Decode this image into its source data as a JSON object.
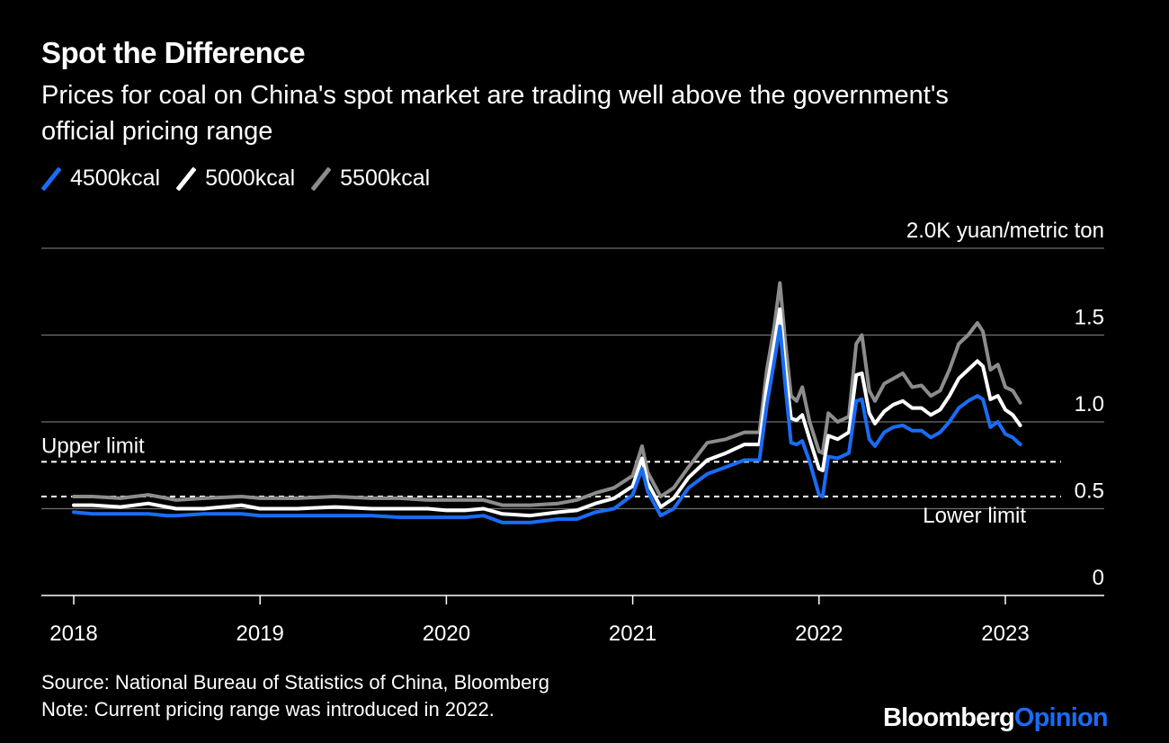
{
  "header": {
    "title": "Spot the Difference",
    "subtitle": "Prices for coal on China's spot market are trading well above the government's official pricing range"
  },
  "legend": [
    {
      "label": "4500kcal",
      "color": "#1a6cf5"
    },
    {
      "label": "5000kcal",
      "color": "#ffffff"
    },
    {
      "label": "5500kcal",
      "color": "#8c8c8c"
    }
  ],
  "footer": {
    "source": "Source: National Bureau of Statistics of China, Bloomberg",
    "note": "Note: Current pricing range was introduced in 2022."
  },
  "brand": {
    "part1": "Bloomberg",
    "part2": "Opinion"
  },
  "chart_data": {
    "type": "line",
    "ylabel": "2.0K yuan/metric ton",
    "ylim": [
      0,
      2.0
    ],
    "y_ticks": [
      {
        "value": 2.0,
        "label": "2.0K yuan/metric ton"
      },
      {
        "value": 1.5,
        "label": "1.5"
      },
      {
        "value": 1.0,
        "label": "1.0"
      },
      {
        "value": 0.5,
        "label": "0.5"
      },
      {
        "value": 0,
        "label": "0"
      }
    ],
    "xlim": [
      2018.0,
      2023.4
    ],
    "x_ticks": [
      {
        "value": 2018,
        "label": "2018"
      },
      {
        "value": 2019,
        "label": "2019"
      },
      {
        "value": 2020,
        "label": "2020"
      },
      {
        "value": 2021,
        "label": "2021"
      },
      {
        "value": 2022,
        "label": "2022"
      },
      {
        "value": 2023,
        "label": "2023"
      }
    ],
    "grid": true,
    "reference_lines": [
      {
        "label": "Upper limit",
        "value": 0.77
      },
      {
        "label": "Lower limit",
        "value": 0.57
      }
    ],
    "series": [
      {
        "name": "4500kcal",
        "color": "#1a6cf5",
        "points": [
          [
            2018.0,
            0.48
          ],
          [
            2018.1,
            0.47
          ],
          [
            2018.25,
            0.47
          ],
          [
            2018.4,
            0.47
          ],
          [
            2018.5,
            0.46
          ],
          [
            2018.55,
            0.46
          ],
          [
            2018.7,
            0.47
          ],
          [
            2018.9,
            0.47
          ],
          [
            2019.0,
            0.46
          ],
          [
            2019.2,
            0.46
          ],
          [
            2019.4,
            0.46
          ],
          [
            2019.6,
            0.46
          ],
          [
            2019.75,
            0.45
          ],
          [
            2019.9,
            0.45
          ],
          [
            2020.0,
            0.45
          ],
          [
            2020.1,
            0.45
          ],
          [
            2020.2,
            0.46
          ],
          [
            2020.3,
            0.42
          ],
          [
            2020.45,
            0.42
          ],
          [
            2020.6,
            0.44
          ],
          [
            2020.7,
            0.44
          ],
          [
            2020.8,
            0.48
          ],
          [
            2020.9,
            0.5
          ],
          [
            2021.0,
            0.58
          ],
          [
            2021.05,
            0.73
          ],
          [
            2021.08,
            0.6
          ],
          [
            2021.15,
            0.46
          ],
          [
            2021.22,
            0.5
          ],
          [
            2021.3,
            0.62
          ],
          [
            2021.4,
            0.7
          ],
          [
            2021.5,
            0.74
          ],
          [
            2021.6,
            0.78
          ],
          [
            2021.68,
            0.78
          ],
          [
            2021.72,
            1.1
          ],
          [
            2021.76,
            1.35
          ],
          [
            2021.79,
            1.55
          ],
          [
            2021.82,
            1.2
          ],
          [
            2021.85,
            0.88
          ],
          [
            2021.88,
            0.87
          ],
          [
            2021.91,
            0.89
          ],
          [
            2021.95,
            0.77
          ],
          [
            2022.0,
            0.58
          ],
          [
            2022.02,
            0.57
          ],
          [
            2022.05,
            0.8
          ],
          [
            2022.1,
            0.79
          ],
          [
            2022.16,
            0.82
          ],
          [
            2022.2,
            1.12
          ],
          [
            2022.23,
            1.13
          ],
          [
            2022.27,
            0.9
          ],
          [
            2022.3,
            0.86
          ],
          [
            2022.35,
            0.94
          ],
          [
            2022.4,
            0.97
          ],
          [
            2022.45,
            0.98
          ],
          [
            2022.5,
            0.95
          ],
          [
            2022.55,
            0.95
          ],
          [
            2022.6,
            0.91
          ],
          [
            2022.65,
            0.94
          ],
          [
            2022.7,
            1.0
          ],
          [
            2022.75,
            1.08
          ],
          [
            2022.8,
            1.12
          ],
          [
            2022.85,
            1.15
          ],
          [
            2022.88,
            1.13
          ],
          [
            2022.92,
            0.97
          ],
          [
            2022.96,
            1.0
          ],
          [
            2023.0,
            0.93
          ],
          [
            2023.04,
            0.91
          ],
          [
            2023.08,
            0.87
          ]
        ]
      },
      {
        "name": "5000kcal",
        "color": "#ffffff",
        "points": [
          [
            2018.0,
            0.52
          ],
          [
            2018.1,
            0.52
          ],
          [
            2018.25,
            0.51
          ],
          [
            2018.4,
            0.53
          ],
          [
            2018.5,
            0.51
          ],
          [
            2018.55,
            0.5
          ],
          [
            2018.7,
            0.5
          ],
          [
            2018.9,
            0.52
          ],
          [
            2019.0,
            0.5
          ],
          [
            2019.2,
            0.5
          ],
          [
            2019.4,
            0.51
          ],
          [
            2019.6,
            0.5
          ],
          [
            2019.75,
            0.5
          ],
          [
            2019.9,
            0.5
          ],
          [
            2020.0,
            0.49
          ],
          [
            2020.1,
            0.49
          ],
          [
            2020.2,
            0.5
          ],
          [
            2020.3,
            0.47
          ],
          [
            2020.45,
            0.46
          ],
          [
            2020.6,
            0.48
          ],
          [
            2020.7,
            0.49
          ],
          [
            2020.8,
            0.53
          ],
          [
            2020.9,
            0.56
          ],
          [
            2021.0,
            0.63
          ],
          [
            2021.05,
            0.79
          ],
          [
            2021.08,
            0.65
          ],
          [
            2021.15,
            0.51
          ],
          [
            2021.22,
            0.56
          ],
          [
            2021.3,
            0.68
          ],
          [
            2021.4,
            0.78
          ],
          [
            2021.5,
            0.82
          ],
          [
            2021.6,
            0.87
          ],
          [
            2021.68,
            0.87
          ],
          [
            2021.72,
            1.2
          ],
          [
            2021.76,
            1.45
          ],
          [
            2021.79,
            1.65
          ],
          [
            2021.82,
            1.3
          ],
          [
            2021.85,
            1.02
          ],
          [
            2021.88,
            1.01
          ],
          [
            2021.91,
            1.04
          ],
          [
            2021.95,
            0.9
          ],
          [
            2022.0,
            0.73
          ],
          [
            2022.02,
            0.72
          ],
          [
            2022.05,
            0.92
          ],
          [
            2022.1,
            0.9
          ],
          [
            2022.16,
            0.94
          ],
          [
            2022.2,
            1.27
          ],
          [
            2022.23,
            1.28
          ],
          [
            2022.27,
            1.05
          ],
          [
            2022.3,
            0.99
          ],
          [
            2022.35,
            1.06
          ],
          [
            2022.4,
            1.1
          ],
          [
            2022.45,
            1.12
          ],
          [
            2022.5,
            1.08
          ],
          [
            2022.55,
            1.08
          ],
          [
            2022.6,
            1.04
          ],
          [
            2022.65,
            1.07
          ],
          [
            2022.7,
            1.15
          ],
          [
            2022.75,
            1.25
          ],
          [
            2022.8,
            1.3
          ],
          [
            2022.85,
            1.35
          ],
          [
            2022.88,
            1.32
          ],
          [
            2022.92,
            1.13
          ],
          [
            2022.96,
            1.15
          ],
          [
            2023.0,
            1.07
          ],
          [
            2023.04,
            1.04
          ],
          [
            2023.08,
            0.98
          ]
        ]
      },
      {
        "name": "5500kcal",
        "color": "#8c8c8c",
        "points": [
          [
            2018.0,
            0.57
          ],
          [
            2018.1,
            0.57
          ],
          [
            2018.25,
            0.56
          ],
          [
            2018.4,
            0.58
          ],
          [
            2018.5,
            0.56
          ],
          [
            2018.55,
            0.55
          ],
          [
            2018.7,
            0.56
          ],
          [
            2018.9,
            0.57
          ],
          [
            2019.0,
            0.56
          ],
          [
            2019.2,
            0.56
          ],
          [
            2019.4,
            0.57
          ],
          [
            2019.6,
            0.56
          ],
          [
            2019.75,
            0.56
          ],
          [
            2019.9,
            0.55
          ],
          [
            2020.0,
            0.55
          ],
          [
            2020.1,
            0.55
          ],
          [
            2020.2,
            0.55
          ],
          [
            2020.3,
            0.52
          ],
          [
            2020.45,
            0.52
          ],
          [
            2020.6,
            0.53
          ],
          [
            2020.7,
            0.55
          ],
          [
            2020.8,
            0.59
          ],
          [
            2020.9,
            0.62
          ],
          [
            2021.0,
            0.69
          ],
          [
            2021.05,
            0.86
          ],
          [
            2021.08,
            0.71
          ],
          [
            2021.15,
            0.57
          ],
          [
            2021.22,
            0.62
          ],
          [
            2021.3,
            0.74
          ],
          [
            2021.4,
            0.88
          ],
          [
            2021.5,
            0.9
          ],
          [
            2021.6,
            0.94
          ],
          [
            2021.68,
            0.94
          ],
          [
            2021.72,
            1.3
          ],
          [
            2021.76,
            1.55
          ],
          [
            2021.79,
            1.8
          ],
          [
            2021.82,
            1.45
          ],
          [
            2021.85,
            1.15
          ],
          [
            2021.88,
            1.12
          ],
          [
            2021.91,
            1.2
          ],
          [
            2021.95,
            1.0
          ],
          [
            2022.0,
            0.83
          ],
          [
            2022.02,
            0.82
          ],
          [
            2022.05,
            1.05
          ],
          [
            2022.1,
            1.0
          ],
          [
            2022.16,
            1.03
          ],
          [
            2022.2,
            1.45
          ],
          [
            2022.23,
            1.5
          ],
          [
            2022.27,
            1.18
          ],
          [
            2022.3,
            1.12
          ],
          [
            2022.35,
            1.22
          ],
          [
            2022.4,
            1.25
          ],
          [
            2022.45,
            1.28
          ],
          [
            2022.5,
            1.2
          ],
          [
            2022.55,
            1.21
          ],
          [
            2022.6,
            1.15
          ],
          [
            2022.65,
            1.18
          ],
          [
            2022.7,
            1.3
          ],
          [
            2022.75,
            1.45
          ],
          [
            2022.8,
            1.5
          ],
          [
            2022.85,
            1.57
          ],
          [
            2022.88,
            1.52
          ],
          [
            2022.92,
            1.3
          ],
          [
            2022.96,
            1.33
          ],
          [
            2023.0,
            1.2
          ],
          [
            2023.04,
            1.18
          ],
          [
            2023.08,
            1.11
          ]
        ]
      }
    ]
  }
}
